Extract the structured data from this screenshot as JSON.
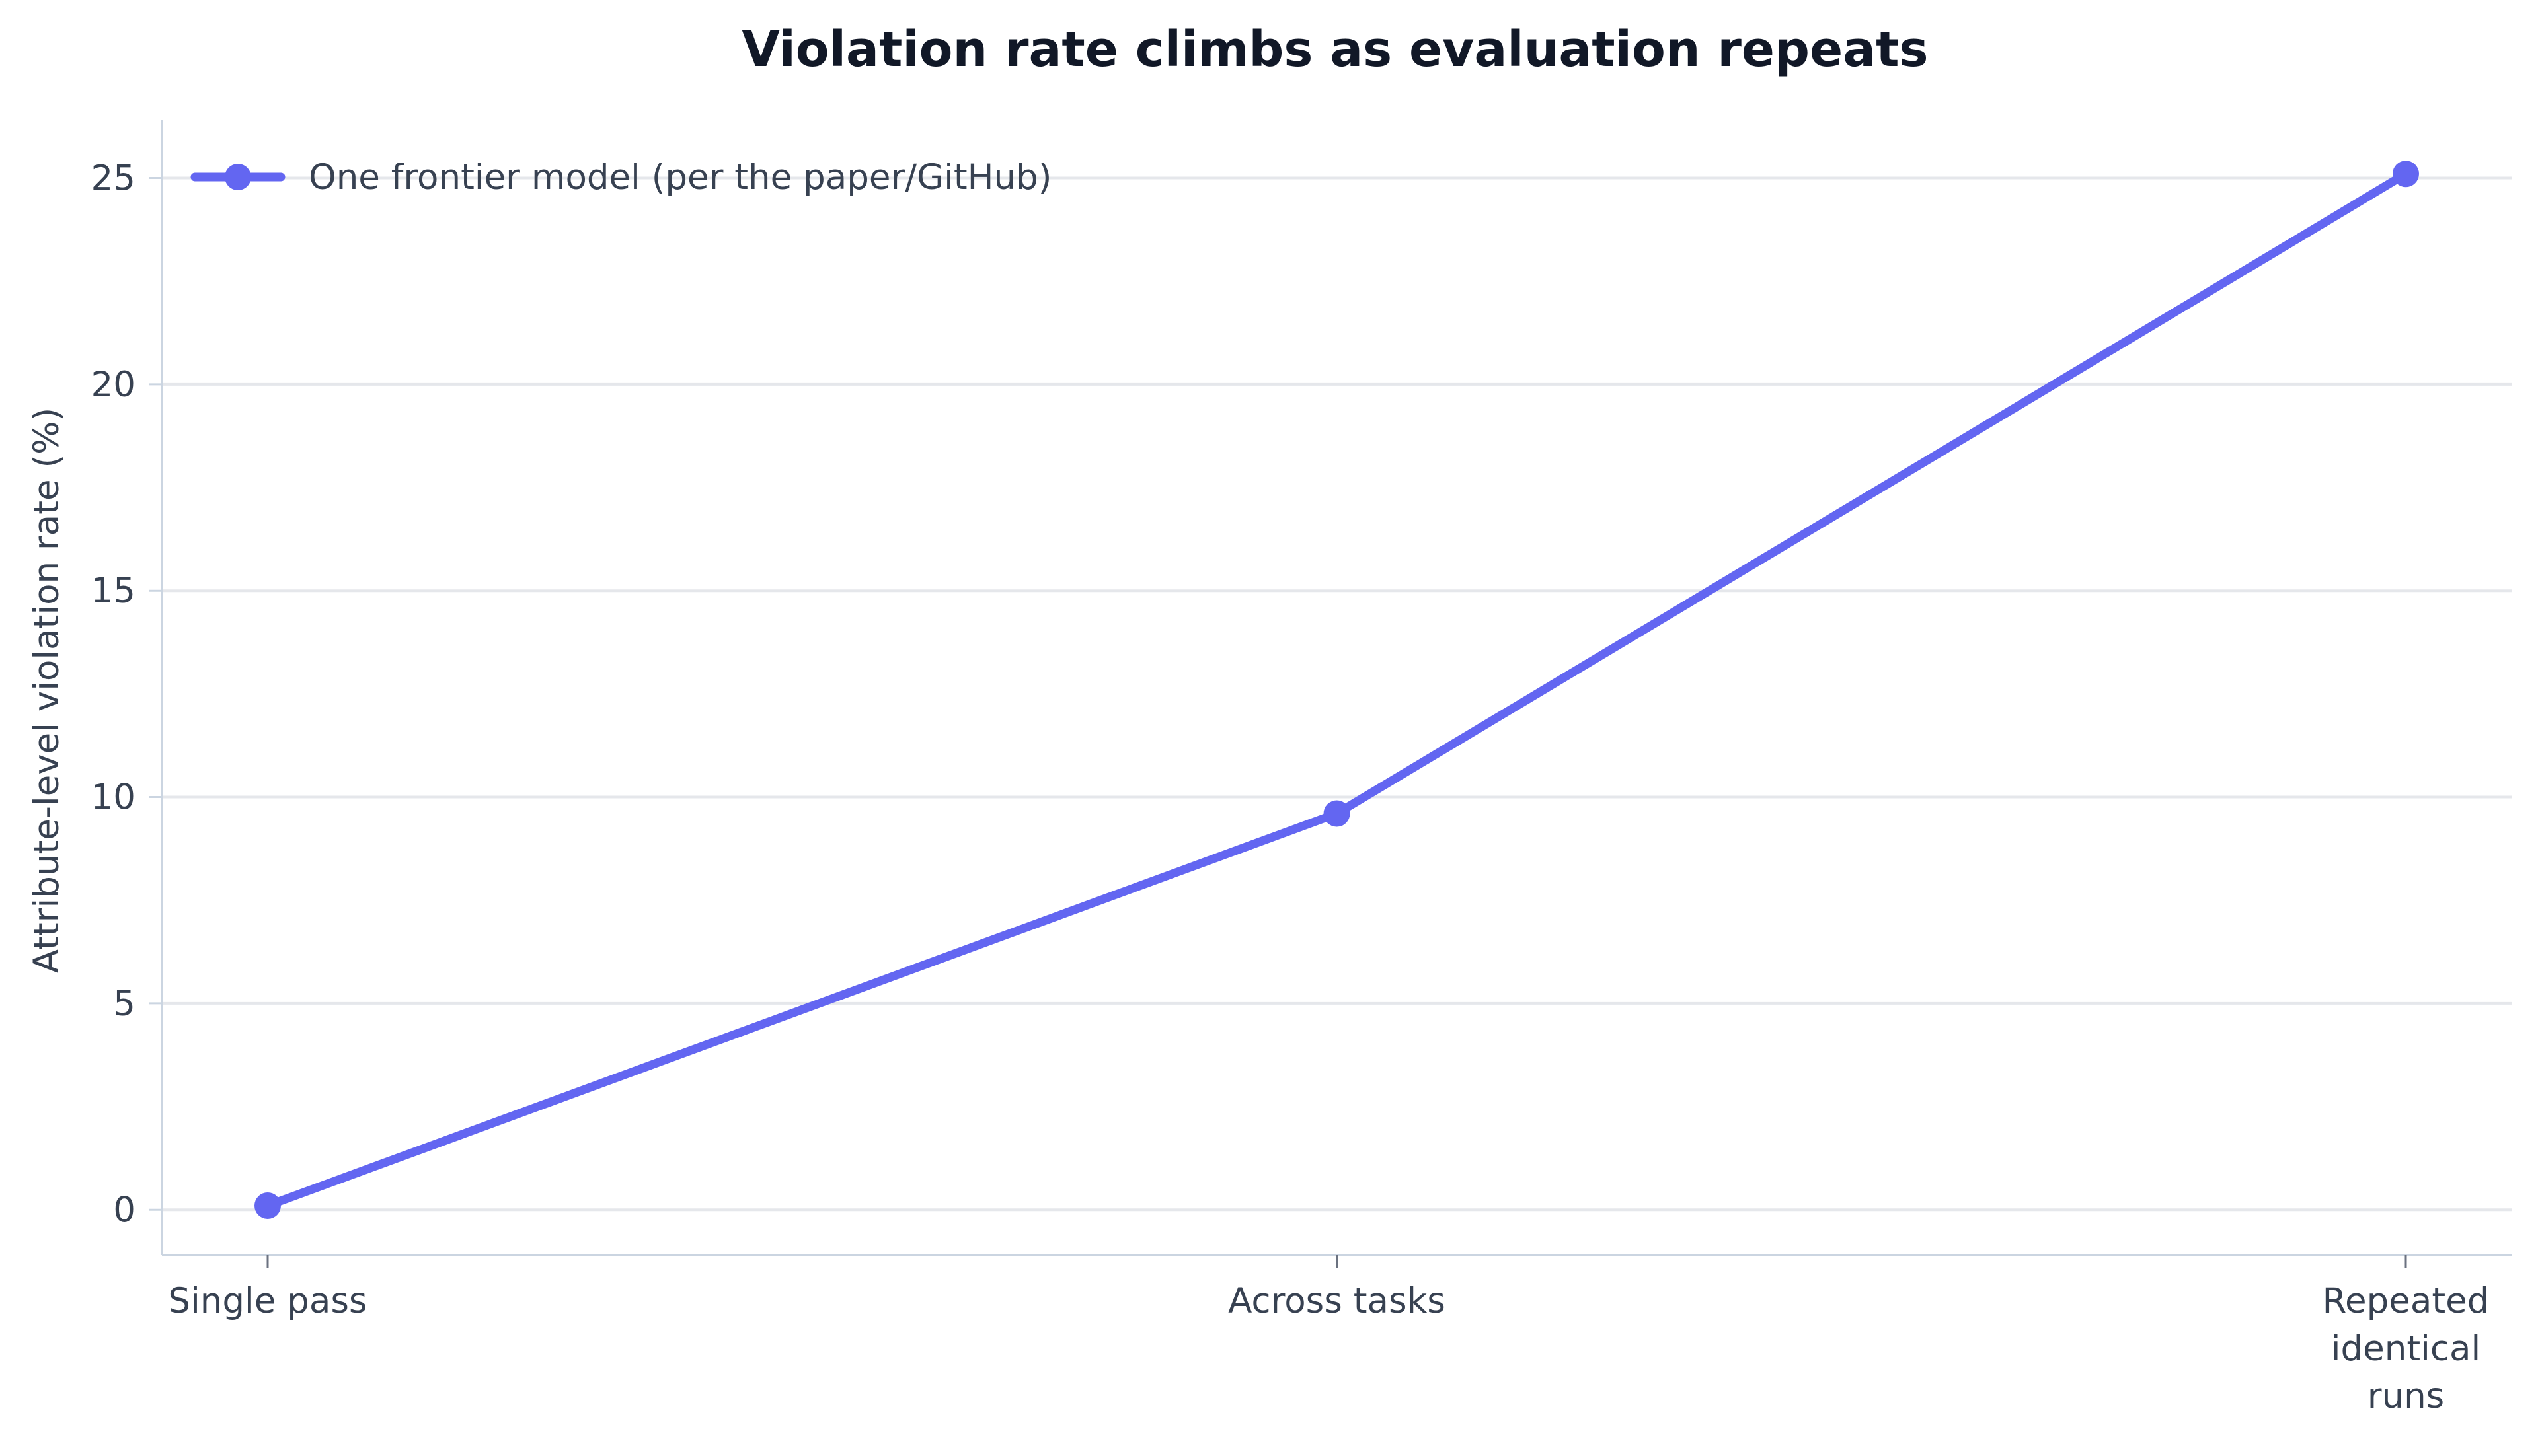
{
  "chart_data": {
    "type": "line",
    "title": "Violation rate climbs as evaluation repeats",
    "xlabel": "",
    "ylabel": "Attribute-level violation rate (%)",
    "categories": [
      "Single pass",
      "Across tasks",
      "Repeated identical runs"
    ],
    "category_label_lines": [
      [
        "Single pass"
      ],
      [
        "Across tasks"
      ],
      [
        "Repeated",
        "identical",
        "runs"
      ]
    ],
    "series": [
      {
        "name": "One frontier model (per the paper/GitHub)",
        "values": [
          0.1,
          9.6,
          25.1
        ],
        "color": "#6366f1",
        "marker": "circle"
      }
    ],
    "yticks": [
      0,
      5,
      10,
      15,
      20,
      25
    ],
    "ylim": [
      -1.1,
      26.4
    ],
    "grid": "horizontal",
    "legend_position": "top-left"
  },
  "colors": {
    "axis": "#cbd5e1",
    "grid": "#e5e7eb",
    "text": "#374151",
    "title": "#111827"
  }
}
